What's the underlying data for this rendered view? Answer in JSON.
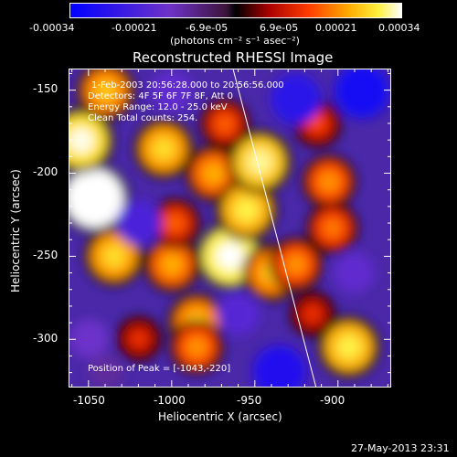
{
  "chart_data": {
    "type": "heatmap",
    "title": "Reconstructed RHESSI Image",
    "xlabel": "Heliocentric X (arcsec)",
    "ylabel": "Heliocentric Y (arcsec)",
    "xlim": [
      -1062,
      -868
    ],
    "ylim": [
      -329,
      -137
    ],
    "x_ticks": [
      -1050,
      -1000,
      -950,
      -900
    ],
    "y_ticks": [
      -150,
      -200,
      -250,
      -300
    ],
    "colorbar": {
      "ticks": [
        "-0.00034",
        "-0.00021",
        "-6.9e-05",
        "6.9e-05",
        "0.00021",
        "0.00034"
      ],
      "unit_label": "(photons cm⁻² s⁻¹ asec⁻²)",
      "range": [
        -0.00034,
        0.00034
      ]
    },
    "annotations": {
      "time": "1-Feb-2003 20:56:28.000 to 20:56:56.000",
      "detectors": "Detectors: 4F 5F 6F 7F 8F, Att 0",
      "energy": "Energy Range: 12.0 - 25.0 keV",
      "method": "Clean    Total counts: 254.",
      "peak": "Position of Peak = [-1043,-220]"
    },
    "limb_line": [
      [
        -963,
        -137
      ],
      [
        -913,
        -329
      ]
    ],
    "hotspots": [
      {
        "x": -1047,
        "y": -215,
        "value": 0.00034
      },
      {
        "x": -1055,
        "y": -180,
        "value": 0.00028
      },
      {
        "x": -1035,
        "y": -250,
        "value": 0.00022
      },
      {
        "x": -1040,
        "y": -150,
        "value": 0.0002
      },
      {
        "x": -1005,
        "y": -185,
        "value": 0.00022
      },
      {
        "x": -965,
        "y": -250,
        "value": 0.0003
      },
      {
        "x": -975,
        "y": -200,
        "value": 0.00018
      },
      {
        "x": -955,
        "y": -222,
        "value": 0.00024
      },
      {
        "x": -947,
        "y": -193,
        "value": 0.00026
      },
      {
        "x": -940,
        "y": -260,
        "value": 0.0002
      },
      {
        "x": -925,
        "y": -255,
        "value": 0.00016
      },
      {
        "x": -905,
        "y": -205,
        "value": 0.00016
      },
      {
        "x": -903,
        "y": -233,
        "value": 0.00014
      },
      {
        "x": -893,
        "y": -305,
        "value": 0.00024
      },
      {
        "x": -1000,
        "y": -255,
        "value": 0.00018
      },
      {
        "x": -985,
        "y": -290,
        "value": 0.0002
      },
      {
        "x": -968,
        "y": -170,
        "value": 0.00012
      },
      {
        "x": -998,
        "y": -230,
        "value": 0.00012
      },
      {
        "x": -1020,
        "y": -300,
        "value": 8e-05
      },
      {
        "x": -985,
        "y": -305,
        "value": 0.00016
      },
      {
        "x": -912,
        "y": -170,
        "value": 0.0001
      },
      {
        "x": -915,
        "y": -285,
        "value": 8e-05
      },
      {
        "x": -1000,
        "y": -150,
        "value": -0.00016
      },
      {
        "x": -1020,
        "y": -230,
        "value": -0.0002
      },
      {
        "x": -925,
        "y": -155,
        "value": -0.00026
      },
      {
        "x": -885,
        "y": -150,
        "value": -0.0003
      },
      {
        "x": -935,
        "y": -320,
        "value": -0.00028
      },
      {
        "x": -1050,
        "y": -300,
        "value": -0.00014
      },
      {
        "x": -960,
        "y": -285,
        "value": -0.00018
      },
      {
        "x": -890,
        "y": -260,
        "value": -0.00016
      },
      {
        "x": -1040,
        "y": -320,
        "value": -0.0001
      }
    ]
  },
  "footer": {
    "date": "27-May-2013 23:31"
  }
}
